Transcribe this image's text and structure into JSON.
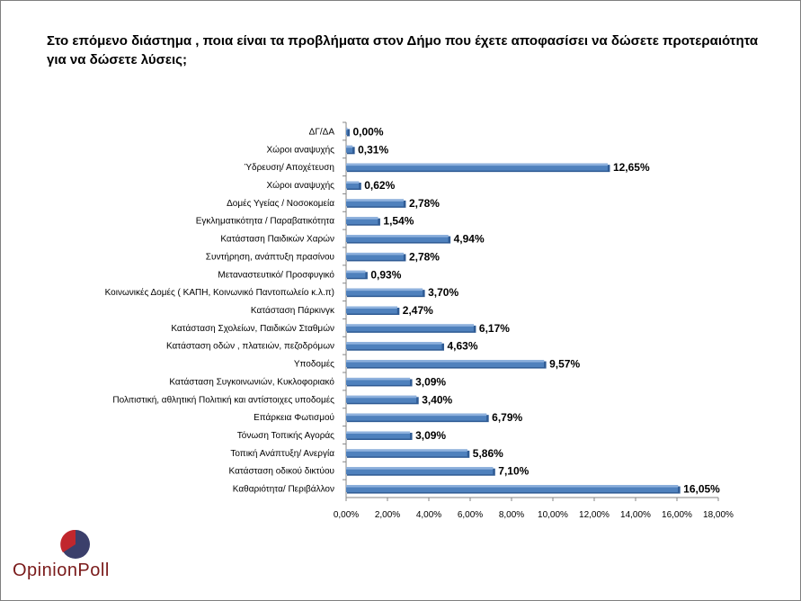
{
  "title": "Στο επόμενο διάστημα , ποια είναι τα προβλήματα στον Δήμο που έχετε αποφασίσει να δώσετε προτεραιότητα για να δώσετε λύσεις;",
  "logo": {
    "text": "OpinionPoll"
  },
  "colors": {
    "bar": "#4f81bd",
    "bar_dark": "#2f5b94",
    "bar_light": "#8eb1dd"
  },
  "chart_data": {
    "type": "bar",
    "orientation": "horizontal",
    "categories": [
      "ΔΓ/ΔΑ",
      "Χώροι αναψυχής",
      "Ύδρευση/ Αποχέτευση",
      "Χώροι αναψυχής",
      "Δομές Υγείας / Νοσοκομεία",
      "Εγκληματικότητα / Παραβατικότητα",
      "Κατάσταση  Παιδικών Χαρών",
      "Συντήρηση, ανάπτυξη πρασίνου",
      "Μεταναστευτικό/ Προσφυγικό",
      "Κοινωνικές Δομές ( ΚΑΠΗ, Κοινωνικό Παντοπωλείο κ.λ.π)",
      "Κατάσταση  Πάρκινγκ",
      "Κατάσταση Σχολείων, Παιδικών Σταθμών",
      "Κατάσταση οδών , πλατειών, πεζοδρόμων",
      "Υποδομές",
      "Κατάσταση Συγκοινωνιών, Κυκλοφοριακό",
      "Πολιτιστική, αθλητική Πολιτική και αντίστοιχες υποδομές",
      "Επάρκεια Φωτισμού",
      "Τόνωση Τοπικής Αγοράς",
      "Τοπική Ανάπτυξη/ Ανεργία",
      "Κατάσταση οδικού δικτύου",
      "Καθαριότητα/ Περιβάλλον"
    ],
    "values": [
      0.0,
      0.31,
      12.65,
      0.62,
      2.78,
      1.54,
      4.94,
      2.78,
      0.93,
      3.7,
      2.47,
      6.17,
      4.63,
      9.57,
      3.09,
      3.4,
      6.79,
      3.09,
      5.86,
      7.1,
      16.05
    ],
    "value_labels": [
      "0,00%",
      "0,31%",
      "12,65%",
      "0,62%",
      "2,78%",
      "1,54%",
      "4,94%",
      "2,78%",
      "0,93%",
      "3,70%",
      "2,47%",
      "6,17%",
      "4,63%",
      "9,57%",
      "3,09%",
      "3,40%",
      "6,79%",
      "3,09%",
      "5,86%",
      "7,10%",
      "16,05%"
    ],
    "xlim": [
      0,
      18
    ],
    "xticks": [
      "0,00%",
      "2,00%",
      "4,00%",
      "6,00%",
      "8,00%",
      "10,00%",
      "12,00%",
      "14,00%",
      "16,00%",
      "18,00%"
    ],
    "grid": false,
    "legend": "none"
  }
}
